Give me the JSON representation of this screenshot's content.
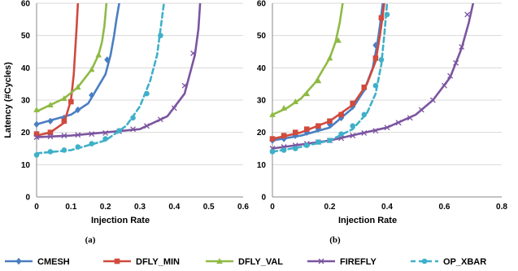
{
  "colors": {
    "CMESH": "#4a7ec2",
    "DFLY_MIN": "#d04a3d",
    "DFLY_VAL": "#8fba45",
    "FIREFLY": "#7b55a0",
    "OP_XBAR": "#3fb0c9",
    "axis": "#888888"
  },
  "legend": {
    "placement": "bottom",
    "items": [
      {
        "key": "CMESH",
        "label": "CMESH",
        "marker": "diamond"
      },
      {
        "key": "DFLY_MIN",
        "label": "DFLY_MIN",
        "marker": "square"
      },
      {
        "key": "DFLY_VAL",
        "label": "DFLY_VAL",
        "marker": "triangle"
      },
      {
        "key": "FIREFLY",
        "label": "FIREFLY",
        "marker": "x"
      },
      {
        "key": "OP_XBAR",
        "label": "OP_XBAR",
        "marker": "circle"
      }
    ]
  },
  "chart_data": [
    {
      "type": "line",
      "panel_label": "(a)",
      "xlabel": "Injection Rate",
      "ylabel": "Latency (#Cycles)",
      "xlim": [
        0,
        0.6
      ],
      "ylim": [
        0,
        60
      ],
      "xticks": [
        "0",
        "0.1",
        "0.2",
        "0.3",
        "0.4",
        "0.5",
        "0.6"
      ],
      "yticks": [
        "0",
        "10",
        "20",
        "30",
        "40",
        "50",
        "60"
      ],
      "grid": "horizontal",
      "series": [
        {
          "name": "CMESH",
          "line_x": [
            0,
            0.05,
            0.1,
            0.15,
            0.2,
            0.215,
            0.225,
            0.232,
            0.24
          ],
          "line_y": [
            22.5,
            24,
            25.5,
            29,
            38,
            44,
            50,
            55,
            60
          ],
          "markers": [
            [
              0,
              22.5
            ],
            [
              0.04,
              23.5
            ],
            [
              0.08,
              24.5
            ],
            [
              0.12,
              27
            ],
            [
              0.16,
              31.5
            ],
            [
              0.205,
              42.5
            ]
          ]
        },
        {
          "name": "DFLY_MIN",
          "line_x": [
            0,
            0.04,
            0.08,
            0.1,
            0.108,
            0.112,
            0.116,
            0.12
          ],
          "line_y": [
            19,
            20,
            23,
            30,
            38,
            45,
            52,
            60
          ],
          "markers": [
            [
              0,
              19.5
            ],
            [
              0.04,
              20
            ],
            [
              0.08,
              23.5
            ],
            [
              0.1,
              29.5
            ]
          ]
        },
        {
          "name": "DFLY_VAL",
          "line_x": [
            0,
            0.04,
            0.08,
            0.12,
            0.16,
            0.18,
            0.19,
            0.197,
            0.203
          ],
          "line_y": [
            26.5,
            28.5,
            30.5,
            34,
            39.5,
            44,
            48,
            53,
            60
          ],
          "markers": [
            [
              0,
              27
            ],
            [
              0.04,
              28.5
            ],
            [
              0.08,
              30.5
            ],
            [
              0.12,
              34
            ],
            [
              0.16,
              39.5
            ],
            [
              0.18,
              44
            ]
          ]
        },
        {
          "name": "FIREFLY",
          "line_x": [
            0,
            0.1,
            0.2,
            0.3,
            0.38,
            0.43,
            0.46,
            0.47,
            0.475
          ],
          "line_y": [
            18.5,
            19,
            20,
            21,
            25,
            32,
            44,
            52,
            60
          ],
          "markers": [
            [
              0,
              18.5
            ],
            [
              0.04,
              18.7
            ],
            [
              0.08,
              19
            ],
            [
              0.12,
              19.2
            ],
            [
              0.16,
              19.5
            ],
            [
              0.2,
              19.8
            ],
            [
              0.24,
              20.3
            ],
            [
              0.28,
              21
            ],
            [
              0.32,
              22
            ],
            [
              0.36,
              24
            ],
            [
              0.4,
              27.5
            ],
            [
              0.43,
              34.5
            ],
            [
              0.455,
              44.5
            ]
          ]
        },
        {
          "name": "OP_XBAR",
          "dashed": true,
          "line_x": [
            0,
            0.1,
            0.2,
            0.26,
            0.3,
            0.33,
            0.35,
            0.36,
            0.37
          ],
          "line_y": [
            13.5,
            14.5,
            17.5,
            22,
            28,
            36,
            44,
            52,
            60
          ],
          "markers": [
            [
              0,
              13
            ],
            [
              0.04,
              14
            ],
            [
              0.08,
              14.5
            ],
            [
              0.12,
              15.5
            ],
            [
              0.16,
              16.5
            ],
            [
              0.2,
              18
            ],
            [
              0.24,
              20.5
            ],
            [
              0.28,
              24.5
            ],
            [
              0.32,
              32
            ],
            [
              0.36,
              50
            ]
          ]
        }
      ]
    },
    {
      "type": "line",
      "panel_label": "(b)",
      "xlabel": "Injection Rate",
      "ylabel": "",
      "xlim": [
        0,
        0.8
      ],
      "ylim": [
        0,
        60
      ],
      "xticks": [
        "0",
        "0.2",
        "0.4",
        "0.6",
        "0.8"
      ],
      "yticks": [
        "0",
        "10",
        "20",
        "30",
        "40",
        "50",
        "60"
      ],
      "grid": "horizontal",
      "series": [
        {
          "name": "CMESH",
          "line_x": [
            0,
            0.1,
            0.2,
            0.28,
            0.32,
            0.35,
            0.365,
            0.375,
            0.385
          ],
          "line_y": [
            17.5,
            19,
            21.5,
            27.5,
            33,
            40,
            47,
            53,
            60
          ],
          "markers": [
            [
              0,
              17.5
            ],
            [
              0.04,
              18
            ],
            [
              0.08,
              19
            ],
            [
              0.12,
              20
            ],
            [
              0.16,
              21
            ],
            [
              0.2,
              22.5
            ],
            [
              0.24,
              24.5
            ],
            [
              0.28,
              28
            ],
            [
              0.32,
              33.5
            ],
            [
              0.36,
              47
            ]
          ]
        },
        {
          "name": "DFLY_MIN",
          "line_x": [
            0,
            0.1,
            0.2,
            0.28,
            0.33,
            0.36,
            0.375,
            0.383,
            0.39
          ],
          "line_y": [
            18,
            20,
            23.5,
            28.5,
            35,
            42,
            50,
            55,
            60
          ],
          "markers": [
            [
              0,
              18
            ],
            [
              0.04,
              19
            ],
            [
              0.08,
              20
            ],
            [
              0.12,
              21
            ],
            [
              0.16,
              22
            ],
            [
              0.2,
              23.5
            ],
            [
              0.24,
              25.5
            ],
            [
              0.28,
              29
            ],
            [
              0.32,
              34
            ],
            [
              0.36,
              43
            ],
            [
              0.38,
              55.5
            ]
          ]
        },
        {
          "name": "DFLY_VAL",
          "line_x": [
            0,
            0.05,
            0.1,
            0.15,
            0.2,
            0.22,
            0.235,
            0.245
          ],
          "line_y": [
            25.5,
            27.5,
            30.5,
            35.5,
            43,
            48,
            54,
            60
          ],
          "markers": [
            [
              0,
              25.5
            ],
            [
              0.04,
              27.5
            ],
            [
              0.08,
              29.5
            ],
            [
              0.12,
              32
            ],
            [
              0.16,
              36
            ],
            [
              0.2,
              43
            ],
            [
              0.23,
              48.5
            ]
          ]
        },
        {
          "name": "FIREFLY",
          "line_x": [
            0,
            0.2,
            0.4,
            0.5,
            0.56,
            0.62,
            0.66,
            0.685,
            0.7
          ],
          "line_y": [
            15,
            17.5,
            21.5,
            25.5,
            30,
            37,
            46,
            54,
            60
          ],
          "markers": [
            [
              0,
              15
            ],
            [
              0.04,
              15.5
            ],
            [
              0.08,
              16
            ],
            [
              0.12,
              16.5
            ],
            [
              0.16,
              17
            ],
            [
              0.2,
              17.5
            ],
            [
              0.24,
              18.2
            ],
            [
              0.28,
              19
            ],
            [
              0.32,
              19.8
            ],
            [
              0.36,
              20.5
            ],
            [
              0.4,
              21.5
            ],
            [
              0.44,
              23
            ],
            [
              0.48,
              24.5
            ],
            [
              0.52,
              27
            ],
            [
              0.56,
              30
            ],
            [
              0.6,
              34.5
            ],
            [
              0.62,
              37.5
            ],
            [
              0.64,
              41.5
            ],
            [
              0.66,
              46.5
            ],
            [
              0.68,
              56.5
            ]
          ]
        },
        {
          "name": "OP_XBAR",
          "dashed": true,
          "line_x": [
            0,
            0.1,
            0.2,
            0.28,
            0.33,
            0.36,
            0.38,
            0.39,
            0.4
          ],
          "line_y": [
            14,
            15.5,
            17.5,
            21,
            26,
            32,
            41,
            50,
            60
          ],
          "markers": [
            [
              0,
              14
            ],
            [
              0.04,
              14.5
            ],
            [
              0.08,
              15
            ],
            [
              0.12,
              16
            ],
            [
              0.16,
              17
            ],
            [
              0.2,
              17.5
            ],
            [
              0.24,
              19.5
            ],
            [
              0.28,
              22
            ],
            [
              0.32,
              25.5
            ],
            [
              0.36,
              34.5
            ],
            [
              0.38,
              42.5
            ],
            [
              0.4,
              56.5
            ]
          ]
        }
      ]
    }
  ]
}
